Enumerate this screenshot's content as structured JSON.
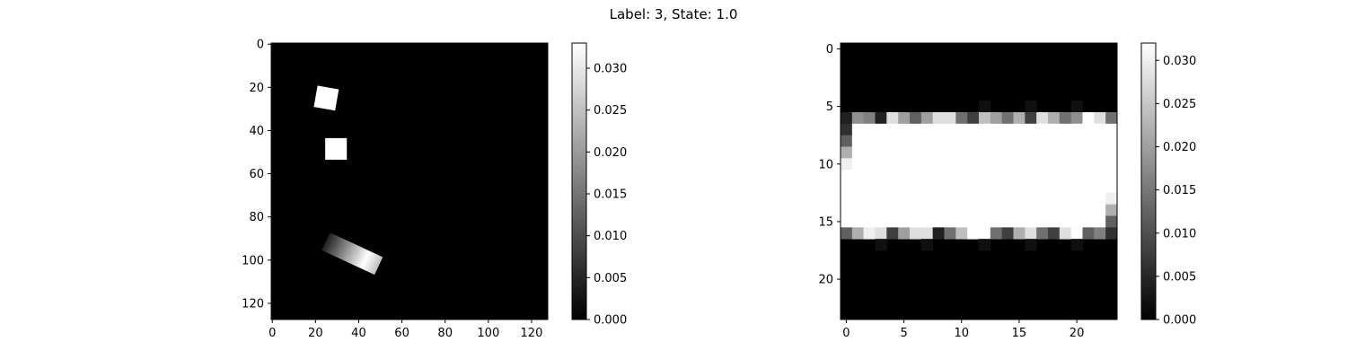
{
  "figure": {
    "title": "Label: 3, State: 1.0"
  },
  "chart_data": [
    {
      "type": "heatmap",
      "colormap": "gray",
      "image_size": [
        128,
        128
      ],
      "xlim": [
        -0.5,
        127.5
      ],
      "ylim": [
        127.5,
        -0.5
      ],
      "x_ticks": [
        0,
        20,
        40,
        60,
        80,
        100,
        120
      ],
      "y_ticks": [
        0,
        20,
        40,
        60,
        80,
        100,
        120
      ],
      "value_range": [
        0,
        0.033
      ],
      "shapes": [
        {
          "kind": "square",
          "center": [
            25,
            25
          ],
          "size": 10,
          "angle_deg": 10,
          "value": 0.033
        },
        {
          "kind": "square",
          "center": [
            29.5,
            48.5
          ],
          "size": 10,
          "angle_deg": 0,
          "value": 0.033
        },
        {
          "kind": "bar",
          "center": [
            37,
            97
          ],
          "length": 27,
          "width": 9,
          "angle_deg": 25,
          "value_min": 0.004,
          "value_peak": 0.033,
          "peak_at": 0.75
        }
      ],
      "colorbar": {
        "ticks": [
          0.0,
          0.005,
          0.01,
          0.015,
          0.02,
          0.025,
          0.03
        ],
        "tick_labels": [
          "0.000",
          "0.005",
          "0.010",
          "0.015",
          "0.020",
          "0.025",
          "0.030"
        ],
        "range": [
          0,
          0.033
        ]
      }
    },
    {
      "type": "heatmap",
      "colormap": "gray",
      "image_size": [
        24,
        24
      ],
      "xlim": [
        -0.5,
        23.5
      ],
      "ylim": [
        23.5,
        -0.5
      ],
      "x_ticks": [
        0,
        5,
        10,
        15,
        20
      ],
      "y_ticks": [
        0,
        5,
        10,
        15,
        20
      ],
      "value_range": [
        0,
        0.032
      ],
      "rows": [
        {
          "row": 5,
          "values": [
            0,
            0,
            0,
            0,
            0,
            0,
            0,
            0,
            0,
            0,
            0,
            0,
            0.002,
            0,
            0,
            0,
            0.002,
            0,
            0,
            0,
            0.002,
            0,
            0,
            0
          ]
        },
        {
          "row": 6,
          "values": [
            0.004,
            0.018,
            0.016,
            0.004,
            0.028,
            0.02,
            0.012,
            0.02,
            0.028,
            0.028,
            0.014,
            0.008,
            0.024,
            0.02,
            0.014,
            0.022,
            0.008,
            0.028,
            0.022,
            0.014,
            0.018,
            0.032,
            0.028,
            0.014
          ]
        },
        {
          "row": 7,
          "values": [
            0.006,
            0.032,
            0.032,
            0.032,
            0.032,
            0.032,
            0.032,
            0.032,
            0.032,
            0.032,
            0.032,
            0.032,
            0.032,
            0.032,
            0.032,
            0.032,
            0.032,
            0.032,
            0.032,
            0.032,
            0.032,
            0.032,
            0.032,
            0.032
          ]
        },
        {
          "row": 8,
          "values": [
            0.012,
            0.032,
            0.032,
            0.032,
            0.032,
            0.032,
            0.032,
            0.032,
            0.032,
            0.032,
            0.032,
            0.032,
            0.032,
            0.032,
            0.032,
            0.032,
            0.032,
            0.032,
            0.032,
            0.032,
            0.032,
            0.032,
            0.032,
            0.032
          ]
        },
        {
          "row": 9,
          "values": [
            0.022,
            0.032,
            0.032,
            0.032,
            0.032,
            0.032,
            0.032,
            0.032,
            0.032,
            0.032,
            0.032,
            0.032,
            0.032,
            0.032,
            0.032,
            0.032,
            0.032,
            0.032,
            0.032,
            0.032,
            0.032,
            0.032,
            0.032,
            0.032
          ]
        },
        {
          "row": 10,
          "values": [
            0.03,
            0.032,
            0.032,
            0.032,
            0.032,
            0.032,
            0.032,
            0.032,
            0.032,
            0.032,
            0.032,
            0.032,
            0.032,
            0.032,
            0.032,
            0.032,
            0.032,
            0.032,
            0.032,
            0.032,
            0.032,
            0.032,
            0.032,
            0.032
          ]
        },
        {
          "row": 11,
          "values": [
            0.032,
            0.032,
            0.032,
            0.032,
            0.032,
            0.032,
            0.032,
            0.032,
            0.032,
            0.032,
            0.032,
            0.032,
            0.032,
            0.032,
            0.032,
            0.032,
            0.032,
            0.032,
            0.032,
            0.032,
            0.032,
            0.032,
            0.032,
            0.032
          ]
        },
        {
          "row": 12,
          "values": [
            0.032,
            0.032,
            0.032,
            0.032,
            0.032,
            0.032,
            0.032,
            0.032,
            0.032,
            0.032,
            0.032,
            0.032,
            0.032,
            0.032,
            0.032,
            0.032,
            0.032,
            0.032,
            0.032,
            0.032,
            0.032,
            0.032,
            0.032,
            0.032
          ]
        },
        {
          "row": 13,
          "values": [
            0.032,
            0.032,
            0.032,
            0.032,
            0.032,
            0.032,
            0.032,
            0.032,
            0.032,
            0.032,
            0.032,
            0.032,
            0.032,
            0.032,
            0.032,
            0.032,
            0.032,
            0.032,
            0.032,
            0.032,
            0.032,
            0.032,
            0.032,
            0.03
          ]
        },
        {
          "row": 14,
          "values": [
            0.032,
            0.032,
            0.032,
            0.032,
            0.032,
            0.032,
            0.032,
            0.032,
            0.032,
            0.032,
            0.032,
            0.032,
            0.032,
            0.032,
            0.032,
            0.032,
            0.032,
            0.032,
            0.032,
            0.032,
            0.032,
            0.032,
            0.032,
            0.022
          ]
        },
        {
          "row": 15,
          "values": [
            0.032,
            0.032,
            0.032,
            0.032,
            0.032,
            0.032,
            0.032,
            0.032,
            0.032,
            0.032,
            0.032,
            0.032,
            0.032,
            0.032,
            0.032,
            0.032,
            0.032,
            0.032,
            0.032,
            0.032,
            0.032,
            0.032,
            0.032,
            0.012
          ]
        },
        {
          "row": 16,
          "values": [
            0.012,
            0.022,
            0.03,
            0.028,
            0.008,
            0.02,
            0.028,
            0.028,
            0.004,
            0.014,
            0.024,
            0.032,
            0.032,
            0.014,
            0.008,
            0.022,
            0.028,
            0.014,
            0.008,
            0.028,
            0.032,
            0.012,
            0.016,
            0.006
          ]
        },
        {
          "row": 17,
          "values": [
            0,
            0,
            0,
            0.002,
            0,
            0,
            0,
            0.002,
            0,
            0,
            0,
            0,
            0.002,
            0,
            0,
            0,
            0.002,
            0,
            0,
            0,
            0.002,
            0,
            0,
            0
          ]
        }
      ],
      "colorbar": {
        "ticks": [
          0.0,
          0.005,
          0.01,
          0.015,
          0.02,
          0.025,
          0.03
        ],
        "tick_labels": [
          "0.000",
          "0.005",
          "0.010",
          "0.015",
          "0.020",
          "0.025",
          "0.030"
        ],
        "range": [
          0,
          0.032
        ]
      }
    }
  ]
}
